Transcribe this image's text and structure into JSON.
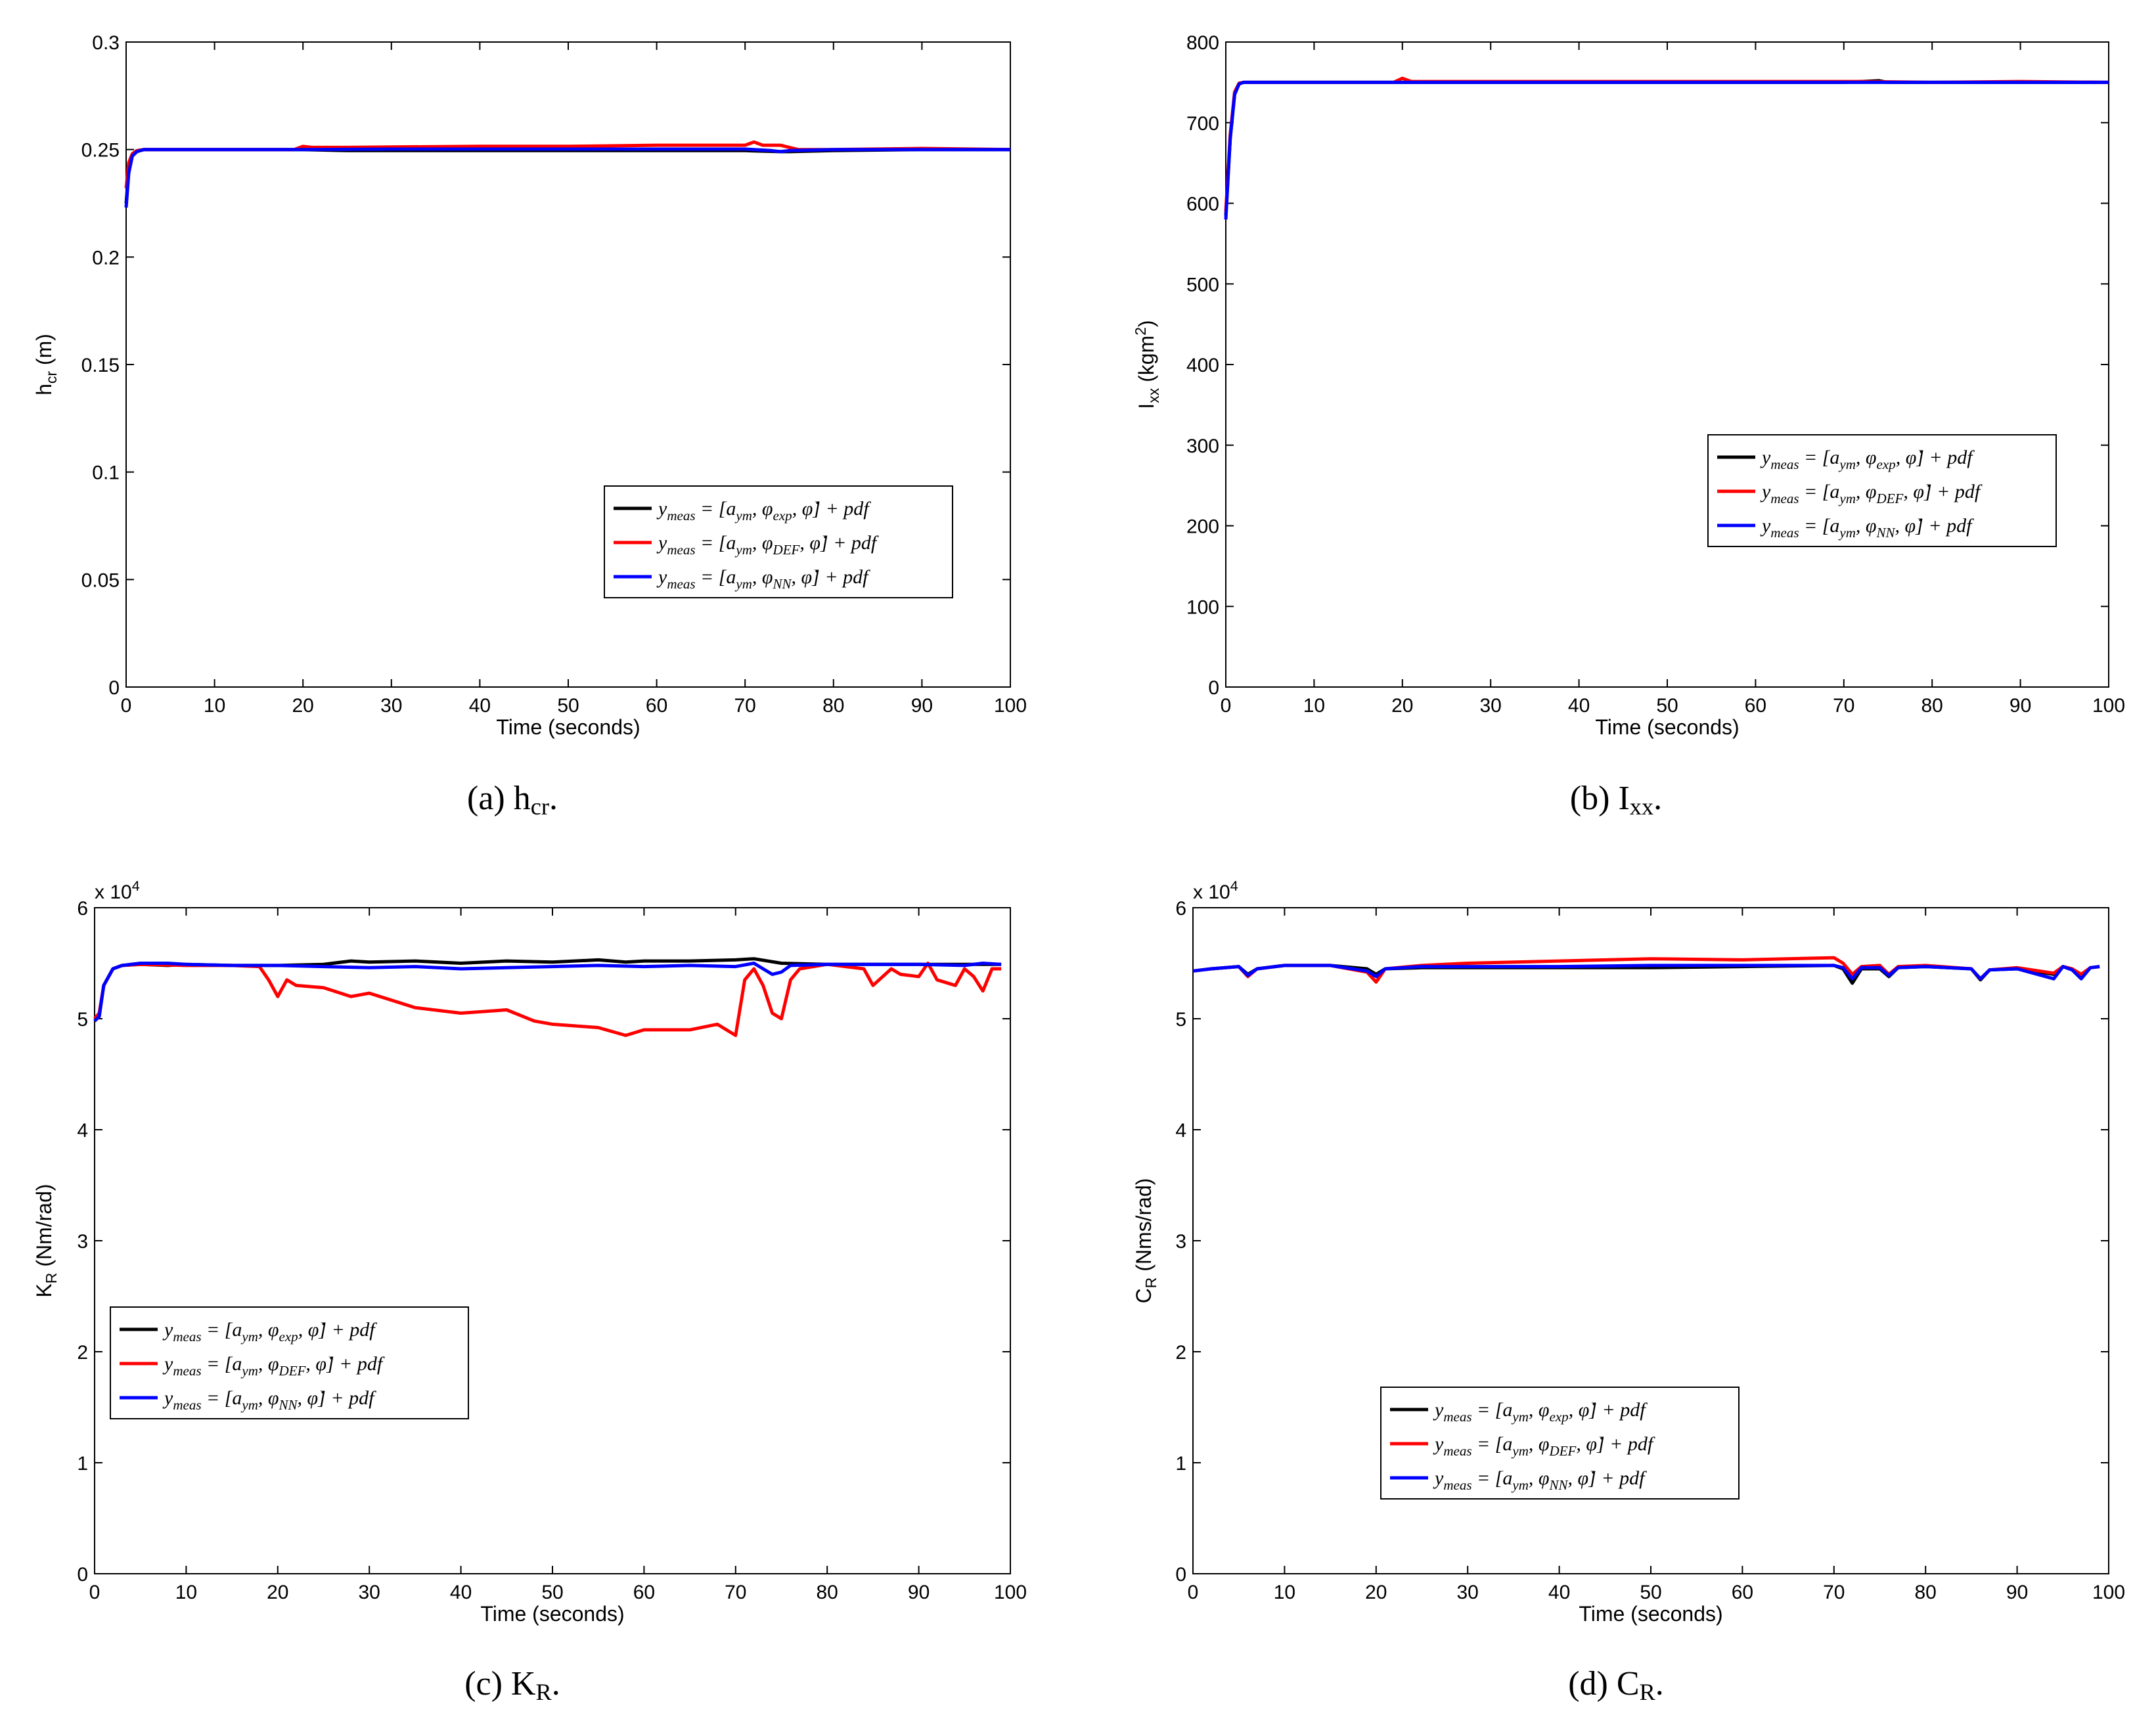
{
  "figure": {
    "legend_entries": [
      {
        "label": "y_meas = [a_ym, φ_exp, φ̇] + pdf",
        "color": "#000000"
      },
      {
        "label": "y_meas = [a_ym, φ_DEF, φ̇] + pdf",
        "color": "#ff0000"
      },
      {
        "label": "y_meas = [a_ym, φ_NN, φ̇] + pdf",
        "color": "#0000ff"
      }
    ]
  },
  "chart_data": [
    {
      "id": "a",
      "type": "line",
      "caption": "(a)  h_cr.",
      "xlabel": "Time (seconds)",
      "ylabel": "h_cr (m)",
      "xlim": [
        0,
        100
      ],
      "ylim": [
        0,
        0.3
      ],
      "xticks": [
        0,
        10,
        20,
        30,
        40,
        50,
        60,
        70,
        80,
        90,
        100
      ],
      "xtick_labels": [
        "0",
        "10",
        "20",
        "30",
        "40",
        "50",
        "60",
        "70",
        "80",
        "90",
        "100"
      ],
      "yticks": [
        0,
        0.05,
        0.1,
        0.15,
        0.2,
        0.25,
        0.3
      ],
      "ytick_labels": [
        "0",
        "0.05",
        "0.1",
        "0.15",
        "0.2",
        "0.25",
        "0.3"
      ],
      "exponent": "",
      "legend_position": "lower-right",
      "series": [
        {
          "name": "y_meas = [a_ym, φ_exp, φ̇] + pdf",
          "color": "#000000",
          "x": [
            0,
            0.3,
            0.7,
            1.2,
            2,
            5,
            10,
            20,
            25,
            30,
            40,
            50,
            60,
            70,
            74,
            75,
            80,
            90,
            100
          ],
          "y": [
            0.225,
            0.24,
            0.247,
            0.249,
            0.25,
            0.25,
            0.25,
            0.25,
            0.2495,
            0.2495,
            0.2495,
            0.2495,
            0.2495,
            0.2495,
            0.249,
            0.249,
            0.2495,
            0.25,
            0.25
          ]
        },
        {
          "name": "y_meas = [a_ym, φ_DEF, φ̇] + pdf",
          "color": "#ff0000",
          "x": [
            0,
            0.3,
            0.7,
            1.2,
            2,
            5,
            10,
            19,
            20,
            21,
            25,
            30,
            40,
            50,
            60,
            70,
            71,
            72,
            74,
            75,
            76,
            80,
            90,
            100
          ],
          "y": [
            0.232,
            0.244,
            0.248,
            0.2495,
            0.25,
            0.25,
            0.25,
            0.25,
            0.2515,
            0.251,
            0.251,
            0.2512,
            0.2515,
            0.2515,
            0.252,
            0.252,
            0.2535,
            0.252,
            0.252,
            0.251,
            0.25,
            0.25,
            0.2505,
            0.25
          ]
        },
        {
          "name": "y_meas = [a_ym, φ_NN, φ̇] + pdf",
          "color": "#0000ff",
          "x": [
            0,
            0.3,
            0.7,
            1.2,
            2,
            5,
            10,
            20,
            30,
            40,
            50,
            60,
            70,
            73,
            74,
            75,
            80,
            90,
            100
          ],
          "y": [
            0.223,
            0.239,
            0.247,
            0.249,
            0.25,
            0.25,
            0.25,
            0.25,
            0.2502,
            0.2502,
            0.2502,
            0.2502,
            0.2502,
            0.2495,
            0.249,
            0.2495,
            0.25,
            0.25,
            0.25
          ]
        }
      ]
    },
    {
      "id": "b",
      "type": "line",
      "caption": "(b)  I_xx.",
      "xlabel": "Time (seconds)",
      "ylabel": "I_xx (kgm^2)",
      "xlim": [
        0,
        100
      ],
      "ylim": [
        0,
        800
      ],
      "xticks": [
        0,
        10,
        20,
        30,
        40,
        50,
        60,
        70,
        80,
        90,
        100
      ],
      "xtick_labels": [
        "0",
        "10",
        "20",
        "30",
        "40",
        "50",
        "60",
        "70",
        "80",
        "90",
        "100"
      ],
      "yticks": [
        0,
        100,
        200,
        300,
        400,
        500,
        600,
        700,
        800
      ],
      "ytick_labels": [
        "0",
        "100",
        "200",
        "300",
        "400",
        "500",
        "600",
        "700",
        "800"
      ],
      "exponent": "",
      "legend_position": "right",
      "series": [
        {
          "name": "y_meas = [a_ym, φ_exp, φ̇] + pdf",
          "color": "#000000",
          "x": [
            0,
            0.5,
            1,
            1.5,
            2,
            5,
            10,
            20,
            30,
            40,
            50,
            60,
            70,
            74,
            75,
            80,
            90,
            100
          ],
          "y": [
            585,
            680,
            735,
            748,
            750,
            750,
            750,
            750,
            750,
            750,
            750,
            750,
            750,
            752,
            750,
            750,
            750,
            750
          ]
        },
        {
          "name": "y_meas = [a_ym, φ_DEF, φ̇] + pdf",
          "color": "#ff0000",
          "x": [
            0,
            0.5,
            1,
            1.5,
            2,
            5,
            10,
            19,
            20,
            21,
            30,
            40,
            50,
            60,
            70,
            72,
            80,
            90,
            100
          ],
          "y": [
            590,
            685,
            738,
            749,
            750,
            750,
            750,
            750,
            755,
            751,
            751,
            751,
            751,
            751,
            751,
            751,
            750,
            751,
            750
          ]
        },
        {
          "name": "y_meas = [a_ym, φ_NN, φ̇] + pdf",
          "color": "#0000ff",
          "x": [
            0,
            0.5,
            1,
            1.5,
            2,
            5,
            10,
            20,
            30,
            40,
            50,
            60,
            70,
            80,
            90,
            100
          ],
          "y": [
            580,
            680,
            735,
            748,
            750,
            750,
            750,
            750,
            750,
            750,
            750,
            750,
            750,
            750,
            750,
            750
          ]
        }
      ]
    },
    {
      "id": "c",
      "type": "line",
      "caption": "(c)  K_R.",
      "xlabel": "Time (seconds)",
      "ylabel": "K_R (Nm/rad)",
      "xlim": [
        0,
        100
      ],
      "ylim": [
        0,
        6
      ],
      "xticks": [
        0,
        10,
        20,
        30,
        40,
        50,
        60,
        70,
        80,
        90,
        100
      ],
      "xtick_labels": [
        "0",
        "10",
        "20",
        "30",
        "40",
        "50",
        "60",
        "70",
        "80",
        "90",
        "100"
      ],
      "yticks": [
        0,
        1,
        2,
        3,
        4,
        5,
        6
      ],
      "ytick_labels": [
        "0",
        "1",
        "2",
        "3",
        "4",
        "5",
        "6"
      ],
      "exponent": "x 10^4",
      "legend_position": "lower-left",
      "series": [
        {
          "name": "y_meas = [a_ym, φ_exp, φ̇] + pdf",
          "color": "#000000",
          "x": [
            0,
            0.5,
            1,
            2,
            3,
            5,
            8,
            10,
            15,
            20,
            25,
            28,
            30,
            35,
            40,
            45,
            50,
            55,
            58,
            60,
            65,
            70,
            72,
            75,
            80,
            85,
            90,
            95,
            99
          ],
          "y": [
            4.98,
            5.02,
            5.3,
            5.45,
            5.48,
            5.49,
            5.48,
            5.49,
            5.48,
            5.48,
            5.49,
            5.52,
            5.51,
            5.52,
            5.5,
            5.52,
            5.51,
            5.53,
            5.51,
            5.52,
            5.52,
            5.53,
            5.54,
            5.5,
            5.49,
            5.49,
            5.49,
            5.49,
            5.49
          ]
        },
        {
          "name": "y_meas = [a_ym, φ_DEF, φ̇] + pdf",
          "color": "#ff0000",
          "x": [
            0,
            0.5,
            1,
            2,
            3,
            5,
            10,
            15,
            18,
            19,
            20,
            21,
            22,
            25,
            28,
            30,
            35,
            40,
            45,
            48,
            50,
            55,
            58,
            60,
            65,
            68,
            70,
            71,
            72,
            73,
            74,
            75,
            76,
            77,
            80,
            82,
            84,
            85,
            87,
            88,
            90,
            91,
            92,
            94,
            95,
            96,
            97,
            98,
            99
          ],
          "y": [
            5.0,
            5.05,
            5.3,
            5.45,
            5.48,
            5.49,
            5.48,
            5.48,
            5.47,
            5.35,
            5.2,
            5.35,
            5.3,
            5.28,
            5.2,
            5.23,
            5.1,
            5.05,
            5.08,
            4.98,
            4.95,
            4.92,
            4.85,
            4.9,
            4.9,
            4.95,
            4.85,
            5.35,
            5.45,
            5.3,
            5.05,
            5.0,
            5.35,
            5.45,
            5.49,
            5.47,
            5.45,
            5.3,
            5.45,
            5.4,
            5.38,
            5.5,
            5.35,
            5.3,
            5.45,
            5.38,
            5.25,
            5.45,
            5.45
          ]
        },
        {
          "name": "y_meas = [a_ym, φ_NN, φ̇] + pdf",
          "color": "#0000ff",
          "x": [
            0,
            0.5,
            1,
            2,
            3,
            5,
            8,
            10,
            15,
            20,
            25,
            30,
            35,
            40,
            45,
            50,
            55,
            60,
            65,
            70,
            72,
            73,
            74,
            75,
            76,
            80,
            85,
            90,
            95,
            97,
            99
          ],
          "y": [
            4.98,
            5.02,
            5.3,
            5.45,
            5.48,
            5.5,
            5.5,
            5.49,
            5.48,
            5.48,
            5.47,
            5.46,
            5.47,
            5.45,
            5.46,
            5.47,
            5.48,
            5.47,
            5.48,
            5.47,
            5.5,
            5.45,
            5.4,
            5.42,
            5.48,
            5.49,
            5.49,
            5.49,
            5.48,
            5.5,
            5.49
          ]
        }
      ]
    },
    {
      "id": "d",
      "type": "line",
      "caption": "(d)  C_R.",
      "xlabel": "Time (seconds)",
      "ylabel": "C_R (Nms/rad)",
      "xlim": [
        0,
        100
      ],
      "ylim": [
        0,
        6
      ],
      "xticks": [
        0,
        10,
        20,
        30,
        40,
        50,
        60,
        70,
        80,
        90,
        100
      ],
      "xtick_labels": [
        "0",
        "10",
        "20",
        "30",
        "40",
        "50",
        "60",
        "70",
        "80",
        "90",
        "100"
      ],
      "yticks": [
        0,
        1,
        2,
        3,
        4,
        5,
        6
      ],
      "ytick_labels": [
        "0",
        "1",
        "2",
        "3",
        "4",
        "5",
        "6"
      ],
      "exponent": "x 10^4",
      "legend_position": "lower-center",
      "series": [
        {
          "name": "y_meas = [a_ym, φ_exp, φ̇] + pdf",
          "color": "#000000",
          "x": [
            0,
            2,
            5,
            6,
            7,
            10,
            15,
            19,
            20,
            21,
            25,
            30,
            40,
            50,
            60,
            70,
            71,
            72,
            73,
            75,
            76,
            77,
            80,
            85,
            86,
            87,
            90,
            94,
            95,
            96,
            97,
            98,
            99
          ],
          "y": [
            5.43,
            5.45,
            5.47,
            5.4,
            5.45,
            5.48,
            5.48,
            5.45,
            5.4,
            5.45,
            5.46,
            5.46,
            5.46,
            5.46,
            5.47,
            5.48,
            5.45,
            5.32,
            5.45,
            5.45,
            5.38,
            5.46,
            5.47,
            5.45,
            5.35,
            5.44,
            5.45,
            5.4,
            5.47,
            5.45,
            5.38,
            5.46,
            5.47
          ]
        },
        {
          "name": "y_meas = [a_ym, φ_DEF, φ̇] + pdf",
          "color": "#ff0000",
          "x": [
            0,
            2,
            5,
            6,
            7,
            10,
            15,
            19,
            20,
            21,
            25,
            30,
            40,
            50,
            60,
            70,
            71,
            72,
            73,
            75,
            76,
            77,
            80,
            85,
            86,
            87,
            90,
            94,
            95,
            96,
            97,
            98,
            99
          ],
          "y": [
            5.43,
            5.45,
            5.47,
            5.38,
            5.45,
            5.48,
            5.48,
            5.42,
            5.33,
            5.45,
            5.48,
            5.5,
            5.52,
            5.54,
            5.53,
            5.55,
            5.5,
            5.4,
            5.47,
            5.48,
            5.4,
            5.47,
            5.48,
            5.45,
            5.36,
            5.44,
            5.46,
            5.41,
            5.47,
            5.45,
            5.4,
            5.46,
            5.47
          ]
        },
        {
          "name": "y_meas = [a_ym, φ_NN, φ̇] + pdf",
          "color": "#0000ff",
          "x": [
            0,
            2,
            5,
            6,
            7,
            10,
            15,
            19,
            20,
            21,
            25,
            30,
            40,
            50,
            60,
            70,
            71,
            72,
            73,
            75,
            76,
            77,
            80,
            85,
            86,
            87,
            90,
            94,
            95,
            96,
            97,
            98,
            99
          ],
          "y": [
            5.43,
            5.45,
            5.47,
            5.39,
            5.45,
            5.48,
            5.48,
            5.43,
            5.38,
            5.45,
            5.47,
            5.47,
            5.47,
            5.48,
            5.48,
            5.48,
            5.46,
            5.36,
            5.46,
            5.46,
            5.39,
            5.46,
            5.47,
            5.45,
            5.36,
            5.44,
            5.45,
            5.36,
            5.47,
            5.44,
            5.36,
            5.46,
            5.47
          ]
        }
      ]
    }
  ]
}
